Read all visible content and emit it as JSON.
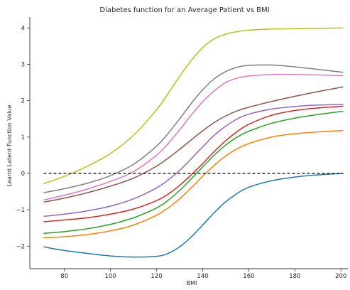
{
  "chart_data": {
    "type": "line",
    "title": "Diabetes function for an Average Patient vs BMI",
    "xlabel": "BMI",
    "ylabel": "Learnt Latent Function Value",
    "xlim": [
      65,
      203
    ],
    "ylim": [
      -2.62,
      4.3
    ],
    "xticks": [
      80,
      100,
      120,
      140,
      160,
      180,
      200
    ],
    "yticks": [
      -2,
      -1,
      0,
      1,
      2,
      3,
      4
    ],
    "xtick_labels": [
      "80",
      "100",
      "120",
      "140",
      "160",
      "180",
      "200"
    ],
    "ytick_labels": [
      "−2",
      "−1",
      "0",
      "1",
      "2",
      "3",
      "4"
    ],
    "grid": false,
    "legend": "none",
    "reference_line": {
      "y": 0,
      "style": "dashed",
      "color": "#000000"
    },
    "series": [
      {
        "color": "#1f77b4",
        "x": [
          71,
          80,
          90,
          100,
          110,
          120,
          125,
          130,
          135,
          140,
          145,
          150,
          155,
          160,
          170,
          180,
          190,
          201
        ],
        "values": [
          -2.02,
          -2.12,
          -2.2,
          -2.27,
          -2.3,
          -2.28,
          -2.2,
          -2.02,
          -1.75,
          -1.42,
          -1.08,
          -0.78,
          -0.55,
          -0.38,
          -0.2,
          -0.1,
          -0.04,
          0.0
        ]
      },
      {
        "color": "#ff7f0e",
        "x": [
          71,
          80,
          90,
          100,
          110,
          120,
          125,
          130,
          135,
          140,
          145,
          150,
          155,
          160,
          170,
          180,
          190,
          201
        ],
        "values": [
          -1.77,
          -1.74,
          -1.68,
          -1.58,
          -1.42,
          -1.15,
          -0.95,
          -0.7,
          -0.4,
          -0.08,
          0.22,
          0.48,
          0.68,
          0.82,
          1.0,
          1.09,
          1.14,
          1.18
        ]
      },
      {
        "color": "#2ca02c",
        "x": [
          71,
          80,
          90,
          100,
          110,
          120,
          125,
          130,
          135,
          140,
          145,
          150,
          155,
          160,
          170,
          180,
          190,
          201
        ],
        "values": [
          -1.65,
          -1.6,
          -1.52,
          -1.4,
          -1.22,
          -0.95,
          -0.74,
          -0.47,
          -0.15,
          0.18,
          0.5,
          0.78,
          1.0,
          1.16,
          1.38,
          1.52,
          1.62,
          1.71
        ]
      },
      {
        "color": "#d62728",
        "x": [
          71,
          80,
          90,
          100,
          110,
          120,
          125,
          130,
          135,
          140,
          145,
          150,
          155,
          160,
          170,
          180,
          190,
          201
        ],
        "values": [
          -1.33,
          -1.28,
          -1.22,
          -1.12,
          -0.98,
          -0.75,
          -0.57,
          -0.33,
          -0.04,
          0.27,
          0.6,
          0.9,
          1.15,
          1.35,
          1.6,
          1.73,
          1.8,
          1.85
        ]
      },
      {
        "color": "#9467bd",
        "x": [
          71,
          80,
          90,
          100,
          110,
          120,
          125,
          130,
          135,
          140,
          145,
          150,
          155,
          160,
          170,
          180,
          190,
          201
        ],
        "values": [
          -1.18,
          -1.12,
          -1.03,
          -0.9,
          -0.7,
          -0.4,
          -0.18,
          0.08,
          0.4,
          0.73,
          1.05,
          1.3,
          1.5,
          1.63,
          1.77,
          1.84,
          1.88,
          1.9
        ]
      },
      {
        "color": "#8c564b",
        "x": [
          71,
          80,
          90,
          100,
          110,
          120,
          125,
          130,
          135,
          140,
          145,
          150,
          155,
          160,
          170,
          180,
          190,
          201
        ],
        "values": [
          -0.79,
          -0.68,
          -0.53,
          -0.35,
          -0.13,
          0.2,
          0.42,
          0.66,
          0.92,
          1.17,
          1.4,
          1.58,
          1.72,
          1.82,
          1.98,
          2.12,
          2.25,
          2.38
        ]
      },
      {
        "color": "#e377c2",
        "x": [
          71,
          80,
          90,
          100,
          110,
          120,
          125,
          130,
          135,
          140,
          145,
          150,
          155,
          160,
          170,
          180,
          190,
          201
        ],
        "values": [
          -0.73,
          -0.6,
          -0.43,
          -0.22,
          0.05,
          0.5,
          0.82,
          1.2,
          1.6,
          1.97,
          2.27,
          2.5,
          2.62,
          2.68,
          2.72,
          2.72,
          2.71,
          2.69
        ]
      },
      {
        "color": "#7f7f7f",
        "x": [
          71,
          80,
          90,
          100,
          110,
          120,
          125,
          130,
          135,
          140,
          145,
          150,
          155,
          160,
          170,
          180,
          190,
          201
        ],
        "values": [
          -0.53,
          -0.42,
          -0.27,
          -0.06,
          0.25,
          0.75,
          1.1,
          1.5,
          1.92,
          2.3,
          2.6,
          2.8,
          2.92,
          2.97,
          2.98,
          2.93,
          2.86,
          2.78
        ]
      },
      {
        "color": "#bcbd22",
        "x": [
          71,
          80,
          90,
          100,
          110,
          120,
          125,
          130,
          135,
          140,
          145,
          150,
          155,
          160,
          170,
          180,
          190,
          201
        ],
        "values": [
          -0.28,
          -0.08,
          0.2,
          0.55,
          1.05,
          1.75,
          2.2,
          2.67,
          3.1,
          3.46,
          3.7,
          3.83,
          3.9,
          3.94,
          3.97,
          3.98,
          3.99,
          4.0
        ]
      }
    ]
  }
}
